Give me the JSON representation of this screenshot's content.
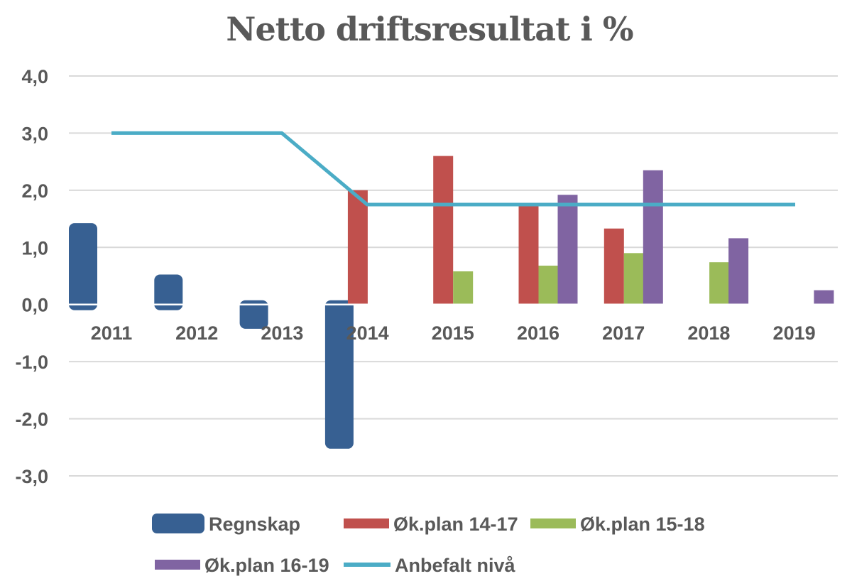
{
  "chart_data": {
    "type": "bar",
    "title": "Netto driftsresultat i %",
    "xlabel": "",
    "ylabel": "",
    "categories": [
      "2011",
      "2012",
      "2013",
      "2014",
      "2015",
      "2016",
      "2017",
      "2018",
      "2019"
    ],
    "yticks": [
      "4,0",
      "3,0",
      "2,0",
      "1,0",
      "0,0",
      "-1,0",
      "-2,0",
      "-3,0"
    ],
    "ylim": [
      -3,
      4
    ],
    "grid": true,
    "legend_position": "bottom",
    "series": [
      {
        "name": "Regnskap",
        "kind": "bar",
        "color": "#376092",
        "values": [
          1.4,
          0.5,
          -0.4,
          -2.5,
          null,
          null,
          null,
          null,
          null
        ]
      },
      {
        "name": "Øk.plan 14-17",
        "kind": "bar",
        "color": "#c0504d",
        "values": [
          null,
          null,
          null,
          2.0,
          2.6,
          1.75,
          1.33,
          null,
          null
        ]
      },
      {
        "name": "Øk.plan 15-18",
        "kind": "bar",
        "color": "#9bbb59",
        "values": [
          null,
          null,
          null,
          null,
          0.58,
          0.68,
          0.9,
          0.74,
          null
        ]
      },
      {
        "name": "Øk.plan 16-19",
        "kind": "bar",
        "color": "#8064a2",
        "values": [
          null,
          null,
          null,
          null,
          null,
          1.92,
          2.35,
          1.16,
          0.25
        ]
      },
      {
        "name": "Anbefalt nivå",
        "kind": "line",
        "color": "#4bacc6",
        "values": [
          3.0,
          3.0,
          3.0,
          1.75,
          1.75,
          1.75,
          1.75,
          1.75,
          1.75
        ]
      }
    ]
  }
}
